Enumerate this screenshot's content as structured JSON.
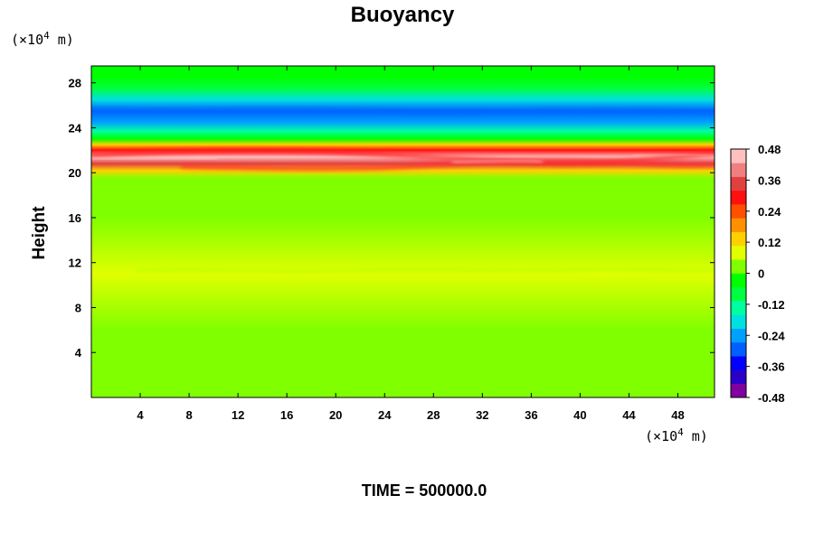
{
  "chart_data": {
    "type": "heatmap",
    "title": "Buoyancy",
    "ylabel": "Height",
    "xlabel": "",
    "x_unit_prefix": "(×10",
    "x_unit_exp": "4",
    "x_unit_suffix": " m)",
    "y_unit_prefix": "(×10",
    "y_unit_exp": "4",
    "y_unit_suffix": " m)",
    "xlim": [
      0,
      51
    ],
    "ylim": [
      0,
      29.5
    ],
    "x_ticks": [
      4,
      8,
      12,
      16,
      20,
      24,
      28,
      32,
      36,
      40,
      44,
      48
    ],
    "y_ticks": [
      4,
      8,
      12,
      16,
      20,
      24,
      28
    ],
    "colorbar": {
      "range": [
        -0.48,
        0.48
      ],
      "tick_values": [
        0.48,
        0.36,
        0.24,
        0.12,
        0,
        -0.12,
        -0.24,
        -0.36,
        -0.48
      ],
      "tick_labels": [
        "0.48",
        "0.36",
        "0.24",
        "0.12",
        "0",
        "-0.12",
        "-0.24",
        "-0.36",
        "-0.48"
      ],
      "colors": [
        "#8000a0",
        "#2a00c8",
        "#0000ff",
        "#0060ff",
        "#00a0ff",
        "#00e0e0",
        "#00ffa0",
        "#00ff40",
        "#00ff00",
        "#80ff00",
        "#e0ff00",
        "#ffd000",
        "#ff9000",
        "#ff5000",
        "#ff1010",
        "#e04040",
        "#f08080",
        "#ffc0c0"
      ]
    },
    "layers": [
      {
        "y": 28.5,
        "value": -0.05
      },
      {
        "y": 27.5,
        "value": -0.1
      },
      {
        "y": 26.5,
        "value": -0.18
      },
      {
        "y": 25.5,
        "value": -0.27
      },
      {
        "y": 24.5,
        "value": -0.24
      },
      {
        "y": 23.7,
        "value": -0.14
      },
      {
        "y": 23.0,
        "value": -0.02
      },
      {
        "y": 22.5,
        "value": 0.12
      },
      {
        "y": 22.0,
        "value": 0.3
      },
      {
        "y": 21.4,
        "value": 0.46
      },
      {
        "y": 20.8,
        "value": 0.36
      },
      {
        "y": 20.2,
        "value": 0.15
      },
      {
        "y": 19.5,
        "value": 0.05
      },
      {
        "y": 16.0,
        "value": 0.02
      },
      {
        "y": 11.0,
        "value": 0.07
      },
      {
        "y": 6.0,
        "value": 0.0
      },
      {
        "y": 0.5,
        "value": 0.0
      }
    ],
    "time_label": "TIME = 500000.0"
  }
}
